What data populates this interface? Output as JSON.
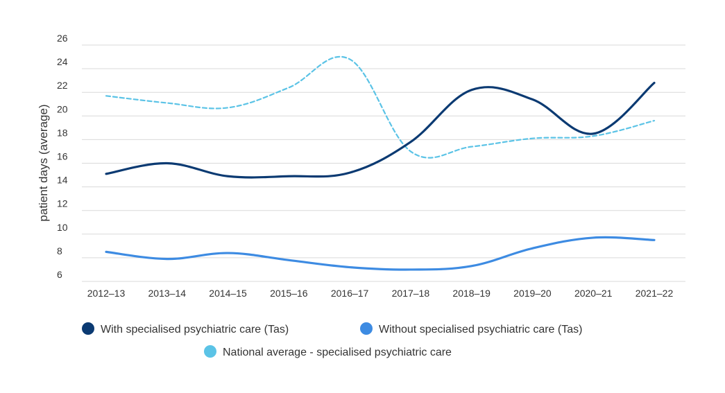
{
  "chart_data": {
    "type": "line",
    "title": "",
    "xlabel": "",
    "ylabel": "patient days (average)",
    "categories": [
      "2012–13",
      "2013–14",
      "2014–15",
      "2015–16",
      "2016–17",
      "2017–18",
      "2018–19",
      "2019–20",
      "2020–21",
      "2021–22"
    ],
    "yticks": [
      6,
      8,
      10,
      12,
      14,
      16,
      18,
      20,
      22,
      24,
      26
    ],
    "ylim": [
      6,
      26
    ],
    "grid": "horizontal",
    "legend_position": "bottom",
    "series": [
      {
        "name": "With specialised psychiatric care (Tas)",
        "color": "#0b3a72",
        "dash": "solid",
        "values": [
          15.1,
          16.0,
          14.9,
          14.9,
          15.2,
          17.8,
          22.2,
          21.4,
          18.5,
          22.8
        ]
      },
      {
        "name": "Without specialised psychiatric care (Tas)",
        "color": "#3d8be2",
        "dash": "solid",
        "values": [
          8.5,
          7.9,
          8.4,
          7.8,
          7.2,
          7.0,
          7.3,
          8.8,
          9.7,
          9.5
        ]
      },
      {
        "name": "National average - specialised psychiatric care",
        "color": "#5bc3e6",
        "dash": "dashed",
        "values": [
          21.7,
          21.1,
          20.7,
          22.4,
          24.8,
          17.0,
          17.4,
          18.1,
          18.3,
          19.6
        ]
      }
    ]
  }
}
